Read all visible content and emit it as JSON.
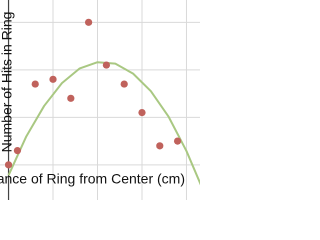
{
  "chart_data": {
    "type": "scatter",
    "x_label": "Distance of Ring from Center (cm)",
    "y_label": "Number of Hits in Ring",
    "x": [
      0,
      0.5,
      1.5,
      2.5,
      3.5,
      4.5,
      5.5,
      6.5,
      7.5,
      8.5,
      9.5
    ],
    "values": [
      0,
      3,
      17,
      18,
      14,
      30,
      21,
      17,
      11,
      4,
      5
    ],
    "color": "#c0625c",
    "fit": {
      "color": "#a9c882",
      "x": [
        0,
        1,
        2,
        3,
        4,
        5,
        6,
        7,
        8,
        9,
        10,
        11
      ],
      "values": [
        -2.2,
        6,
        12.4,
        17.2,
        20.3,
        21.6,
        21.3,
        19.2,
        15.5,
        10.1,
        2.9,
        -5.9
      ]
    },
    "xlim": [
      -0.48,
      10.76
    ],
    "ylim": [
      -7.4,
      34.7
    ],
    "xticks": [
      0,
      2.5,
      5,
      7.5,
      10
    ],
    "yticks": [
      0,
      10,
      20,
      30
    ],
    "grid": true
  }
}
